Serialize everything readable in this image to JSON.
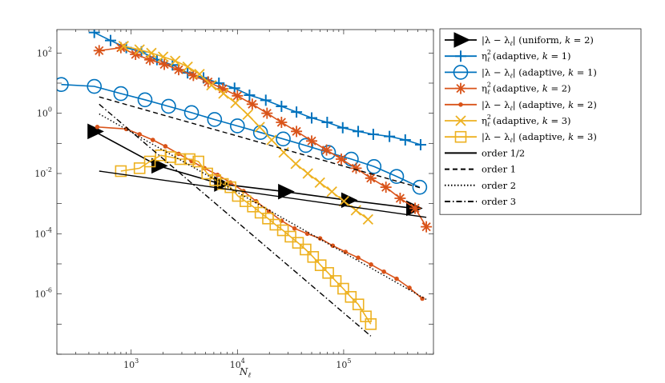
{
  "chart_data": {
    "type": "line",
    "xscale": "log",
    "yscale": "log",
    "xlim": [
      200,
      700000
    ],
    "ylim": [
      1e-08,
      600
    ],
    "xticks": [
      1000,
      10000,
      100000
    ],
    "xtick_labels": [
      {
        "base": "10",
        "exp": "3"
      },
      {
        "base": "10",
        "exp": "4"
      },
      {
        "base": "10",
        "exp": "5"
      }
    ],
    "yticks": [
      1e-06,
      0.0001,
      0.01,
      1,
      100
    ],
    "ytick_labels": [
      {
        "base": "10",
        "exp": "-6"
      },
      {
        "base": "10",
        "exp": "-4"
      },
      {
        "base": "10",
        "exp": "-2"
      },
      {
        "base": "10",
        "exp": "0"
      },
      {
        "base": "10",
        "exp": "2"
      }
    ],
    "xlabel": {
      "main": "N",
      "sub": "ℓ"
    },
    "ylabel": "",
    "title": "",
    "grid": false,
    "legend_position": "outside-right",
    "series": [
      {
        "name": "|λ − λℓ| (uniform, k = 2)",
        "label": {
          "pre": "|λ − λ",
          "sub": "ℓ",
          "post": "| (uniform, ",
          "k": "k",
          "eq": " = 2)"
        },
        "color": "#000000",
        "marker": "triangle-right",
        "dash": "solid",
        "x": [
          450,
          1800,
          7000,
          28000,
          110000,
          450000
        ],
        "y": [
          0.25,
          0.018,
          0.0045,
          0.0025,
          0.0013,
          0.0007
        ]
      },
      {
        "name": "η²ℓ (adaptive, k = 1)",
        "label": {
          "pre": "η",
          "sub": "ℓ",
          "sup": "2",
          "post": " (adaptive, ",
          "k": "k",
          "eq": " = 1)"
        },
        "color": "#0072BD",
        "marker": "plus",
        "dash": "solid",
        "x": [
          450,
          640,
          900,
          1250,
          1750,
          2450,
          3400,
          4800,
          6700,
          9400,
          13000,
          18500,
          26000,
          36000,
          50000,
          70000,
          98000,
          137000,
          190000,
          270000,
          380000,
          530000
        ],
        "y": [
          480,
          260,
          150,
          110,
          60,
          40,
          22,
          15,
          10,
          6.8,
          4.0,
          2.7,
          1.7,
          1.1,
          0.7,
          0.5,
          0.33,
          0.25,
          0.2,
          0.17,
          0.13,
          0.09
        ]
      },
      {
        "name": "|λ − λℓ| (adaptive, k = 1)",
        "label": {
          "pre": "|λ − λ",
          "sub": "ℓ",
          "post": "| (adaptive, ",
          "k": "k",
          "eq": " = 1)"
        },
        "color": "#0072BD",
        "marker": "circle",
        "dash": "solid",
        "x": [
          220,
          450,
          800,
          1350,
          2250,
          3700,
          6100,
          10000,
          16500,
          27000,
          44000,
          72000,
          118000,
          193000,
          315000,
          520000
        ],
        "y": [
          9,
          7.8,
          4.5,
          2.8,
          1.7,
          1.05,
          0.62,
          0.38,
          0.23,
          0.14,
          0.085,
          0.05,
          0.03,
          0.017,
          0.008,
          0.0035
        ]
      },
      {
        "name": "η²ℓ (adaptive, k = 2)",
        "label": {
          "pre": "η",
          "sub": "ℓ",
          "sup": "2",
          "post": " (adaptive, ",
          "k": "k",
          "eq": " = 2)"
        },
        "color": "#D95319",
        "marker": "asterisk",
        "dash": "solid",
        "x": [
          500,
          800,
          1100,
          1500,
          2050,
          2800,
          3850,
          5300,
          7300,
          10000,
          13800,
          19000,
          26000,
          36000,
          50000,
          69000,
          95000,
          131000,
          180000,
          250000,
          340000,
          470000,
          600000
        ],
        "y": [
          120,
          150,
          90,
          60,
          42,
          28,
          18,
          11,
          6.5,
          3.8,
          2.0,
          1.0,
          0.5,
          0.25,
          0.12,
          0.06,
          0.03,
          0.015,
          0.007,
          0.0035,
          0.0015,
          0.0007,
          0.00017
        ]
      },
      {
        "name": "|λ − λℓ| (adaptive, k = 2)",
        "label": {
          "pre": "|λ − λ",
          "sub": "ℓ",
          "post": "| (adaptive, ",
          "k": "k",
          "eq": " = 2)"
        },
        "color": "#D95319",
        "marker": "dot",
        "dash": "solid",
        "x": [
          480,
          900,
          1200,
          1600,
          2100,
          2800,
          3700,
          4900,
          6500,
          8600,
          11400,
          15000,
          19800,
          26000,
          34500,
          45500,
          60000,
          79000,
          104000,
          137000,
          181000,
          239000,
          315000,
          416000,
          550000
        ],
        "y": [
          0.35,
          0.3,
          0.2,
          0.13,
          0.08,
          0.045,
          0.026,
          0.015,
          0.009,
          0.005,
          0.0026,
          0.0012,
          0.00055,
          0.00027,
          0.00015,
          0.0001,
          7e-05,
          4e-05,
          2.5e-05,
          1.6e-05,
          9.5e-06,
          5.5e-06,
          3.2e-06,
          1.6e-06,
          7e-07
        ]
      },
      {
        "name": "η²ℓ (adaptive, k = 3)",
        "label": {
          "pre": "η",
          "sub": "ℓ",
          "sup": "2",
          "post": " (adaptive, ",
          "k": "k",
          "eq": " = 3)"
        },
        "color": "#EDB120",
        "marker": "cross",
        "dash": "solid",
        "x": [
          850,
          1200,
          1550,
          2000,
          2600,
          3400,
          4400,
          5700,
          7400,
          9600,
          12500,
          16200,
          21000,
          27300,
          35400,
          46000,
          59700,
          77500,
          100600,
          130600,
          169600
        ],
        "y": [
          170,
          130,
          100,
          75,
          55,
          35,
          20,
          8.5,
          4.5,
          2.2,
          0.9,
          0.35,
          0.13,
          0.05,
          0.021,
          0.01,
          0.005,
          0.0025,
          0.0012,
          0.0006,
          0.0003
        ]
      },
      {
        "name": "|λ − λℓ| (adaptive, k = 3)",
        "label": {
          "pre": "|λ − λ",
          "sub": "ℓ",
          "post": "| (adaptive, ",
          "k": "k",
          "eq": " = 3)"
        },
        "color": "#EDB120",
        "marker": "square",
        "dash": "solid",
        "x": [
          800,
          1200,
          1500,
          1900,
          2350,
          2900,
          3550,
          4300,
          5200,
          6200,
          7300,
          8600,
          10100,
          11900,
          14000,
          16500,
          19400,
          22800,
          26800,
          31600,
          37200,
          43800,
          51600,
          60700,
          71500,
          84200,
          99100,
          116700,
          137400,
          161700,
          180000
        ],
        "y": [
          0.012,
          0.015,
          0.025,
          0.04,
          0.035,
          0.03,
          0.03,
          0.025,
          0.01,
          0.006,
          0.0045,
          0.0035,
          0.0018,
          0.0012,
          0.0008,
          0.0005,
          0.00032,
          0.0002,
          0.00013,
          8e-05,
          5e-05,
          3e-05,
          1.7e-05,
          9e-06,
          5e-06,
          2.7e-06,
          1.5e-06,
          8e-07,
          4.5e-07,
          1.8e-07,
          1e-07
        ]
      },
      {
        "name": "order 1/2",
        "label": {
          "pre": "order 1/2"
        },
        "color": "#000000",
        "marker": "none",
        "dash": "solid",
        "x": [
          500,
          600000
        ],
        "y": [
          0.012,
          0.00035
        ]
      },
      {
        "name": "order 1",
        "label": {
          "pre": "order 1"
        },
        "color": "#000000",
        "marker": "none",
        "dash": "dashed",
        "x": [
          500,
          550000
        ],
        "y": [
          3.5,
          0.0032
        ]
      },
      {
        "name": "order 2",
        "label": {
          "pre": "order 2"
        },
        "color": "#000000",
        "marker": "none",
        "dash": "dotted",
        "x": [
          500,
          600000
        ],
        "y": [
          0.95,
          6.6e-07
        ]
      },
      {
        "name": "order 3",
        "label": {
          "pre": "order 3"
        },
        "color": "#000000",
        "marker": "none",
        "dash": "dashdot",
        "x": [
          500,
          180000
        ],
        "y": [
          2.0,
          4e-08
        ]
      }
    ]
  }
}
